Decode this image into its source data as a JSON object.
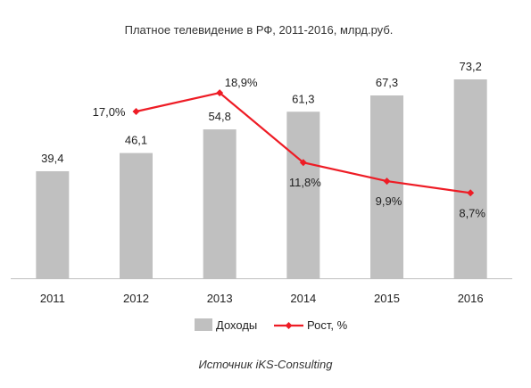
{
  "chart_data": {
    "type": "bar",
    "title": "Платное телевидение в РФ, 2011-2016, млрд.руб.",
    "categories": [
      "2011",
      "2012",
      "2013",
      "2014",
      "2015",
      "2016"
    ],
    "series": [
      {
        "name": "Доходы",
        "type": "bar",
        "color": "#c0c0c0",
        "values": [
          39.4,
          46.1,
          54.8,
          61.3,
          67.3,
          73.2
        ],
        "labels": [
          "39,4",
          "46,1",
          "54,8",
          "61,3",
          "67,3",
          "73,2"
        ]
      },
      {
        "name": "Рост, %",
        "type": "line",
        "color": "#ee1c25",
        "values": [
          null,
          17.0,
          18.9,
          11.8,
          9.9,
          8.7
        ],
        "labels": [
          null,
          "17,0%",
          "18,9%",
          "11,8%",
          "9,9%",
          "8,7%"
        ]
      }
    ],
    "ylim": [
      0,
      80
    ],
    "y2lim": [
      0,
      22
    ],
    "grid": false,
    "legend_position": "bottom"
  },
  "source": "Источник iKS-Consulting"
}
